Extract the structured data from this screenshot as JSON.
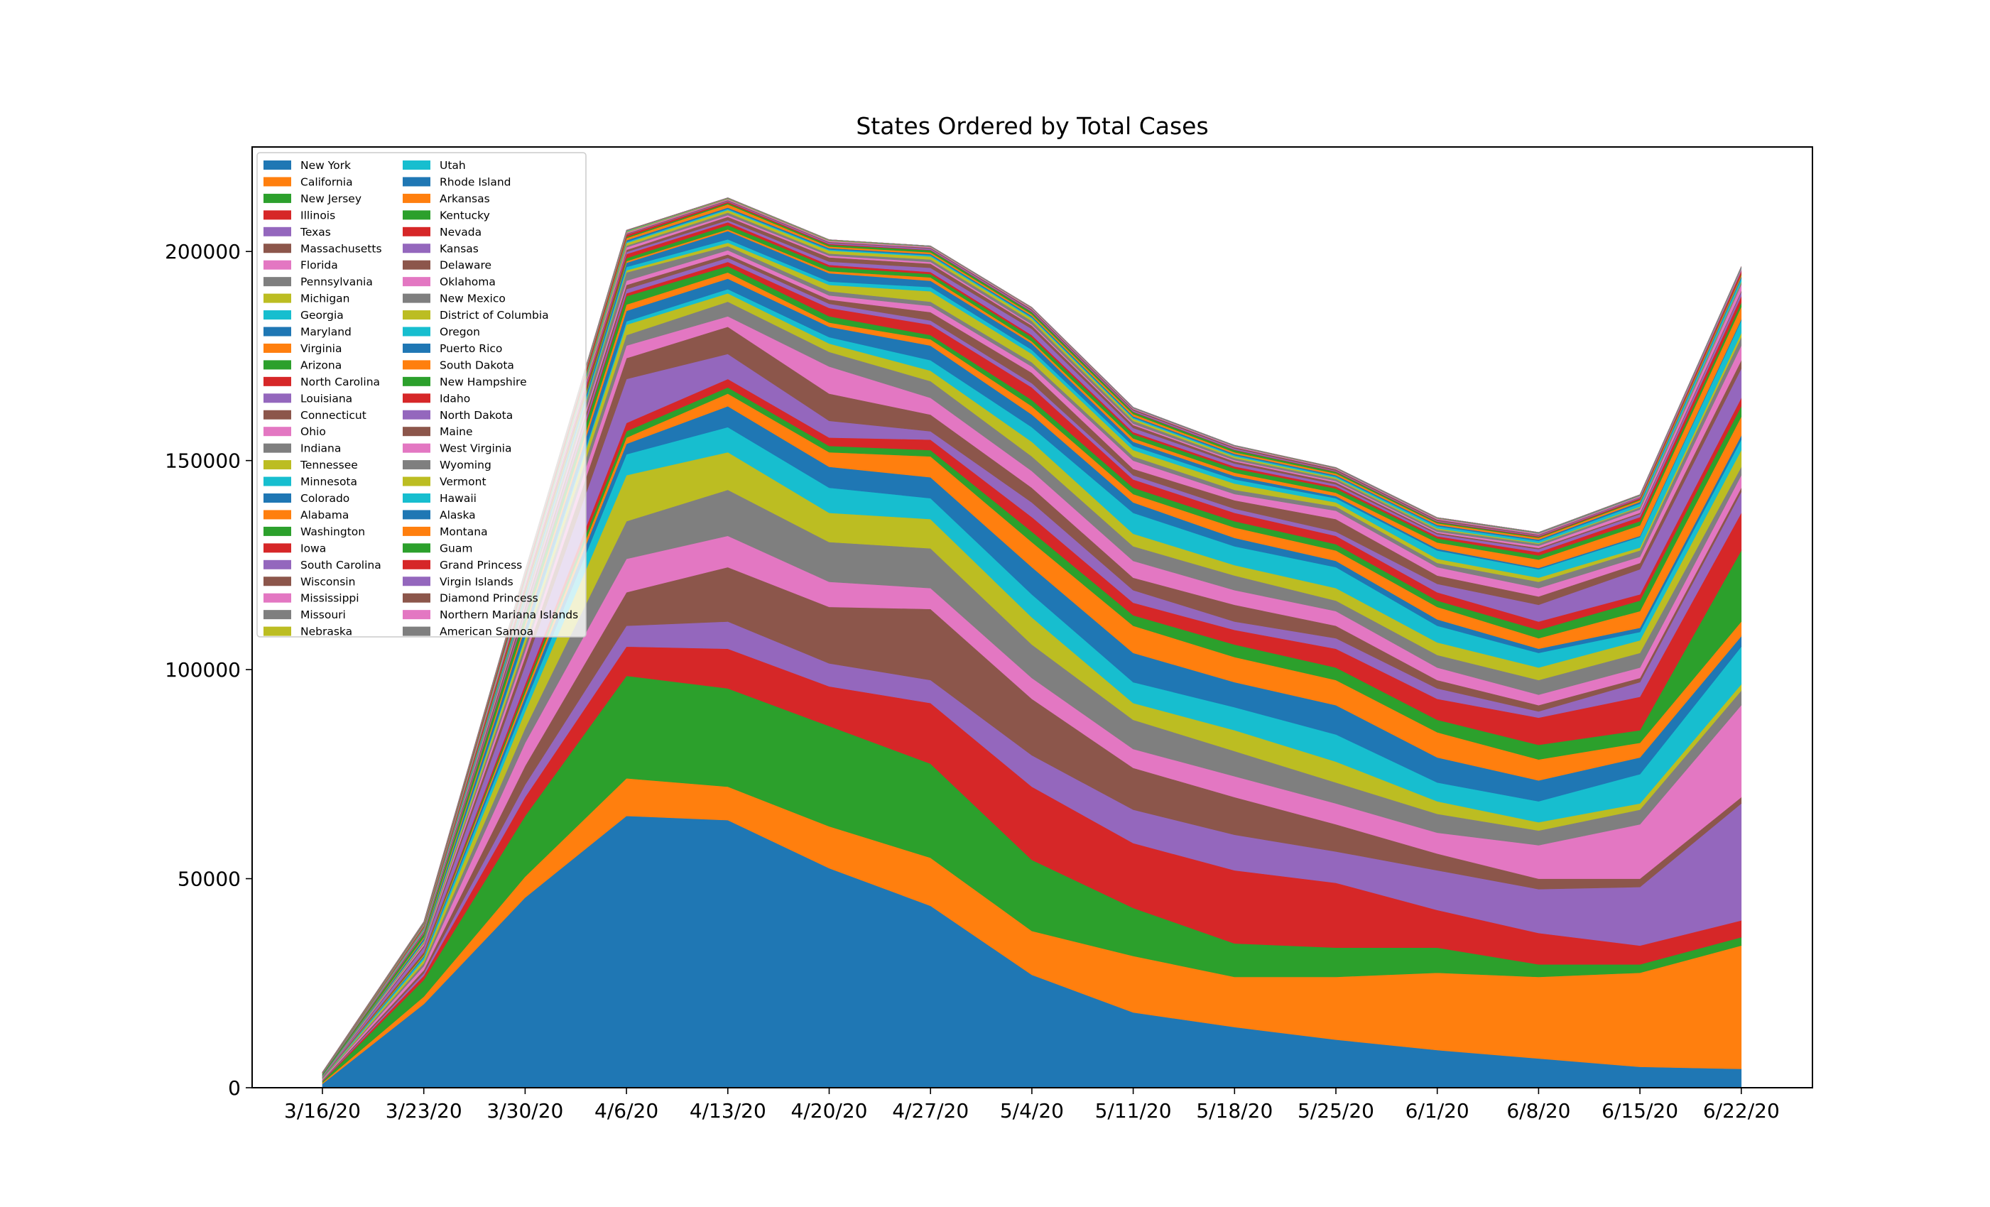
{
  "chart_data": {
    "type": "area",
    "stacked": true,
    "title": "States Ordered by Total Cases",
    "xlabel": "",
    "ylabel": "",
    "categories": [
      "3/16/20",
      "3/23/20",
      "3/30/20",
      "4/6/20",
      "4/13/20",
      "4/20/20",
      "4/27/20",
      "5/4/20",
      "5/11/20",
      "5/18/20",
      "5/25/20",
      "6/1/20",
      "6/8/20",
      "6/15/20",
      "6/22/20"
    ],
    "ylim": [
      0,
      225000
    ],
    "yticks": [
      0,
      50000,
      100000,
      150000,
      200000
    ],
    "grid": false,
    "legend": {
      "placement": "top-left",
      "columns": 2
    },
    "series": [
      {
        "name": "New York",
        "color": "#1f77b4",
        "values": [
          950,
          20000,
          45500,
          65000,
          64000,
          52500,
          43500,
          27000,
          18000,
          14500,
          11500,
          9000,
          7000,
          5000,
          4500
        ]
      },
      {
        "name": "California",
        "color": "#ff7f0e",
        "values": [
          250,
          1800,
          5000,
          9000,
          8000,
          10000,
          11500,
          10500,
          13500,
          12000,
          15000,
          18500,
          19500,
          22500,
          29500
        ]
      },
      {
        "name": "New Jersey",
        "color": "#2ca02c",
        "values": [
          300,
          4000,
          14500,
          24500,
          23500,
          24000,
          22500,
          17000,
          11500,
          8000,
          7000,
          6000,
          3000,
          2000,
          2000
        ]
      },
      {
        "name": "Illinois",
        "color": "#d62728",
        "values": [
          100,
          1000,
          4500,
          7000,
          9500,
          9500,
          14500,
          17500,
          15500,
          17500,
          15500,
          9000,
          7500,
          4500,
          4000
        ]
      },
      {
        "name": "Texas",
        "color": "#9467bd",
        "values": [
          100,
          600,
          3000,
          5000,
          6500,
          5500,
          5500,
          7500,
          8000,
          8500,
          7500,
          9500,
          10500,
          14000,
          28000
        ]
      },
      {
        "name": "Massachusetts",
        "color": "#8c564b",
        "values": [
          150,
          700,
          4500,
          8000,
          13000,
          13500,
          17000,
          13500,
          10000,
          9000,
          6500,
          4000,
          2500,
          2000,
          1500
        ]
      },
      {
        "name": "Florida",
        "color": "#e377c2",
        "values": [
          200,
          1000,
          5500,
          8000,
          7500,
          6000,
          5000,
          5000,
          4500,
          5000,
          5000,
          5000,
          8000,
          13000,
          22000
        ]
      },
      {
        "name": "Pennsylvania",
        "color": "#7f7f7f",
        "values": [
          100,
          700,
          3500,
          9000,
          11000,
          9500,
          9500,
          8000,
          7000,
          6000,
          5000,
          4500,
          3500,
          3500,
          3500
        ]
      },
      {
        "name": "Michigan",
        "color": "#bcbd22",
        "values": [
          100,
          800,
          4000,
          11000,
          9000,
          7000,
          7000,
          6500,
          4000,
          5000,
          5000,
          3000,
          2000,
          1500,
          1500
        ]
      },
      {
        "name": "Georgia",
        "color": "#17becf",
        "values": [
          100,
          600,
          2000,
          5000,
          6000,
          6000,
          5000,
          5500,
          5000,
          5500,
          6500,
          4500,
          5000,
          7000,
          9000
        ]
      },
      {
        "name": "Maryland",
        "color": "#1f77b4",
        "values": [
          50,
          300,
          1500,
          2500,
          5000,
          5000,
          5000,
          6500,
          7000,
          6000,
          7000,
          6000,
          5000,
          4000,
          2500
        ]
      },
      {
        "name": "Virginia",
        "color": "#ff7f0e",
        "values": [
          50,
          300,
          1000,
          1500,
          3000,
          3500,
          5000,
          6000,
          6500,
          6000,
          6000,
          6000,
          5000,
          3500,
          3500
        ]
      },
      {
        "name": "Arizona",
        "color": "#2ca02c",
        "values": [
          50,
          300,
          1000,
          1500,
          1500,
          1500,
          1500,
          2500,
          2500,
          3000,
          3000,
          3000,
          3500,
          3000,
          17000
        ]
      },
      {
        "name": "North Carolina",
        "color": "#d62728",
        "values": [
          50,
          300,
          1000,
          2000,
          2000,
          2000,
          2500,
          3500,
          3000,
          3500,
          4500,
          5000,
          6500,
          8000,
          9000
        ]
      },
      {
        "name": "Louisiana",
        "color": "#9467bd",
        "values": [
          100,
          1200,
          4500,
          10500,
          6000,
          4000,
          2000,
          3500,
          3000,
          2000,
          2500,
          2500,
          1500,
          3500,
          5000
        ]
      },
      {
        "name": "Connecticut",
        "color": "#8c564b",
        "values": [
          50,
          400,
          2000,
          5000,
          6500,
          6500,
          4000,
          3500,
          3000,
          4000,
          3000,
          2000,
          1500,
          1000,
          1000
        ]
      },
      {
        "name": "Ohio",
        "color": "#e377c2",
        "values": [
          50,
          400,
          1500,
          3000,
          2500,
          6500,
          4000,
          4000,
          4000,
          3500,
          3500,
          3000,
          2500,
          2500,
          3000
        ]
      },
      {
        "name": "Indiana",
        "color": "#7f7f7f",
        "values": [
          50,
          300,
          1500,
          2500,
          3500,
          3500,
          4000,
          3500,
          3500,
          3500,
          2500,
          3000,
          3500,
          3500,
          2000
        ]
      },
      {
        "name": "Tennessee",
        "color": "#bcbd22",
        "values": [
          50,
          300,
          1500,
          2500,
          2000,
          2000,
          2500,
          3500,
          3000,
          2500,
          3000,
          3000,
          3000,
          3000,
          4000
        ]
      },
      {
        "name": "Minnesota",
        "color": "#17becf",
        "values": [
          20,
          200,
          500,
          800,
          1000,
          1500,
          2500,
          3500,
          5000,
          4500,
          5000,
          4000,
          3500,
          2000,
          2500
        ]
      },
      {
        "name": "Colorado",
        "color": "#1f77b4",
        "values": [
          100,
          500,
          2000,
          2500,
          2500,
          2500,
          3500,
          3000,
          2500,
          2000,
          1500,
          1500,
          1000,
          1000,
          1000
        ]
      },
      {
        "name": "Alabama",
        "color": "#ff7f0e",
        "values": [
          30,
          300,
          1000,
          1500,
          1500,
          1000,
          1500,
          2000,
          2000,
          2500,
          2500,
          3000,
          2500,
          4000,
          4500
        ]
      },
      {
        "name": "Washington",
        "color": "#2ca02c",
        "values": [
          300,
          800,
          2000,
          2000,
          1500,
          1500,
          1000,
          1500,
          1500,
          1500,
          1500,
          1500,
          2000,
          2500,
          2500
        ]
      },
      {
        "name": "Iowa",
        "color": "#d62728",
        "values": [
          20,
          100,
          300,
          700,
          1000,
          2000,
          2500,
          3000,
          2000,
          2000,
          2000,
          2000,
          2000,
          1500,
          2000
        ]
      },
      {
        "name": "South Carolina",
        "color": "#9467bd",
        "values": [
          30,
          200,
          800,
          1000,
          1000,
          1000,
          1000,
          1000,
          1000,
          1000,
          1000,
          2000,
          4000,
          6000,
          7000
        ]
      },
      {
        "name": "Wisconsin",
        "color": "#8c564b",
        "values": [
          50,
          300,
          1000,
          1000,
          800,
          1000,
          2000,
          2500,
          1500,
          2000,
          3000,
          2000,
          2000,
          1500,
          2000
        ]
      },
      {
        "name": "Mississippi",
        "color": "#e377c2",
        "values": [
          20,
          200,
          700,
          1000,
          1000,
          1000,
          1500,
          1500,
          2000,
          1500,
          2000,
          2000,
          2000,
          1500,
          3500
        ]
      },
      {
        "name": "Missouri",
        "color": "#7f7f7f",
        "values": [
          20,
          200,
          1000,
          2000,
          1000,
          1000,
          1000,
          1000,
          1000,
          1000,
          1000,
          1000,
          1500,
          1500,
          2000
        ]
      },
      {
        "name": "Nebraska",
        "color": "#bcbd22",
        "values": [
          10,
          50,
          200,
          500,
          800,
          1500,
          2500,
          2000,
          1500,
          1500,
          1000,
          1000,
          1000,
          700,
          1000
        ]
      },
      {
        "name": "Utah",
        "color": "#17becf",
        "values": [
          20,
          200,
          600,
          800,
          800,
          800,
          1000,
          1000,
          1000,
          1000,
          1000,
          2000,
          2000,
          2500,
          3000
        ]
      },
      {
        "name": "Rhode Island",
        "color": "#1f77b4",
        "values": [
          20,
          100,
          500,
          1000,
          2000,
          2000,
          1500,
          1500,
          1000,
          800,
          500,
          400,
          300,
          300,
          300
        ]
      },
      {
        "name": "Arkansas",
        "color": "#ff7f0e",
        "values": [
          20,
          200,
          400,
          400,
          400,
          500,
          800,
          500,
          800,
          800,
          800,
          1500,
          2000,
          2500,
          3000
        ]
      },
      {
        "name": "Kentucky",
        "color": "#2ca02c",
        "values": [
          20,
          100,
          400,
          700,
          1000,
          1000,
          800,
          1000,
          1000,
          1000,
          1000,
          1000,
          1000,
          1000,
          1000
        ]
      },
      {
        "name": "Nevada",
        "color": "#d62728",
        "values": [
          20,
          200,
          800,
          1000,
          700,
          500,
          500,
          500,
          500,
          500,
          500,
          500,
          800,
          1000,
          1500
        ]
      },
      {
        "name": "Kansas",
        "color": "#9467bd",
        "values": [
          10,
          100,
          300,
          500,
          500,
          800,
          1000,
          1500,
          1000,
          700,
          500,
          500,
          700,
          700,
          1000
        ]
      },
      {
        "name": "Delaware",
        "color": "#8c564b",
        "values": [
          10,
          50,
          200,
          500,
          800,
          1000,
          1000,
          800,
          700,
          500,
          500,
          300,
          300,
          300,
          300
        ]
      },
      {
        "name": "Oklahoma",
        "color": "#e377c2",
        "values": [
          10,
          100,
          500,
          600,
          400,
          400,
          400,
          300,
          300,
          300,
          300,
          300,
          500,
          800,
          1500
        ]
      },
      {
        "name": "New Mexico",
        "color": "#7f7f7f",
        "values": [
          10,
          50,
          200,
          400,
          600,
          500,
          600,
          800,
          700,
          500,
          500,
          500,
          500,
          500,
          500
        ]
      },
      {
        "name": "District of Columbia",
        "color": "#bcbd22",
        "values": [
          10,
          100,
          300,
          600,
          600,
          700,
          700,
          600,
          500,
          400,
          300,
          300,
          200,
          200,
          200
        ]
      },
      {
        "name": "Oregon",
        "color": "#17becf",
        "values": [
          10,
          100,
          300,
          300,
          300,
          300,
          300,
          300,
          300,
          300,
          300,
          500,
          500,
          700,
          800
        ]
      },
      {
        "name": "Puerto Rico",
        "color": "#1f77b4",
        "values": [
          5,
          50,
          200,
          400,
          300,
          300,
          300,
          300,
          300,
          300,
          300,
          300,
          300,
          400,
          400
        ]
      },
      {
        "name": "South Dakota",
        "color": "#ff7f0e",
        "values": [
          5,
          20,
          100,
          500,
          800,
          400,
          400,
          400,
          500,
          400,
          400,
          400,
          400,
          400,
          400
        ]
      },
      {
        "name": "New Hampshire",
        "color": "#2ca02c",
        "values": [
          10,
          50,
          200,
          300,
          300,
          400,
          500,
          500,
          500,
          500,
          400,
          300,
          200,
          200,
          200
        ]
      },
      {
        "name": "Idaho",
        "color": "#d62728",
        "values": [
          5,
          100,
          700,
          500,
          300,
          200,
          100,
          100,
          100,
          100,
          100,
          100,
          200,
          300,
          700
        ]
      },
      {
        "name": "North Dakota",
        "color": "#9467bd",
        "values": [
          5,
          20,
          100,
          100,
          200,
          300,
          300,
          300,
          300,
          300,
          200,
          200,
          200,
          200,
          200
        ]
      },
      {
        "name": "Maine",
        "color": "#8c564b",
        "values": [
          10,
          50,
          200,
          200,
          200,
          200,
          200,
          300,
          300,
          300,
          300,
          300,
          200,
          100,
          100
        ]
      },
      {
        "name": "West Virginia",
        "color": "#e377c2",
        "values": [
          5,
          20,
          100,
          200,
          200,
          200,
          200,
          200,
          200,
          200,
          200,
          200,
          200,
          200,
          300
        ]
      },
      {
        "name": "Wyoming",
        "color": "#7f7f7f",
        "values": [
          5,
          20,
          100,
          100,
          100,
          100,
          100,
          100,
          100,
          100,
          100,
          100,
          100,
          100,
          100
        ]
      },
      {
        "name": "Vermont",
        "color": "#bcbd22",
        "values": [
          5,
          50,
          200,
          200,
          100,
          100,
          50,
          50,
          50,
          50,
          50,
          50,
          50,
          50,
          50
        ]
      },
      {
        "name": "Hawaii",
        "color": "#17becf",
        "values": [
          5,
          50,
          100,
          100,
          50,
          50,
          20,
          20,
          20,
          20,
          20,
          20,
          50,
          50,
          100
        ]
      },
      {
        "name": "Alaska",
        "color": "#1f77b4",
        "values": [
          5,
          20,
          80,
          80,
          30,
          20,
          20,
          20,
          20,
          20,
          20,
          40,
          50,
          60,
          100
        ]
      },
      {
        "name": "Montana",
        "color": "#ff7f0e",
        "values": [
          5,
          30,
          100,
          80,
          30,
          20,
          10,
          10,
          10,
          10,
          10,
          20,
          30,
          50,
          100
        ]
      },
      {
        "name": "Guam",
        "color": "#2ca02c",
        "values": [
          5,
          20,
          20,
          20,
          20,
          20,
          20,
          20,
          20,
          20,
          20,
          20,
          20,
          20,
          20
        ]
      },
      {
        "name": "Grand Princess",
        "color": "#d62728",
        "values": [
          20,
          30,
          20,
          10,
          10,
          10,
          10,
          10,
          10,
          10,
          10,
          10,
          10,
          10,
          10
        ]
      },
      {
        "name": "Virgin Islands",
        "color": "#9467bd",
        "values": [
          2,
          10,
          10,
          10,
          10,
          10,
          10,
          10,
          10,
          10,
          10,
          10,
          10,
          10,
          10
        ]
      },
      {
        "name": "Diamond Princess",
        "color": "#8c564b",
        "values": [
          40,
          20,
          10,
          5,
          5,
          5,
          5,
          5,
          5,
          5,
          5,
          5,
          5,
          5,
          5
        ]
      },
      {
        "name": "Northern Mariana Islands",
        "color": "#e377c2",
        "values": [
          1,
          5,
          5,
          5,
          5,
          5,
          5,
          5,
          5,
          5,
          5,
          5,
          5,
          5,
          5
        ]
      },
      {
        "name": "American Samoa",
        "color": "#7f7f7f",
        "values": [
          0,
          0,
          0,
          0,
          0,
          0,
          0,
          0,
          0,
          0,
          0,
          0,
          0,
          0,
          0
        ]
      }
    ]
  }
}
